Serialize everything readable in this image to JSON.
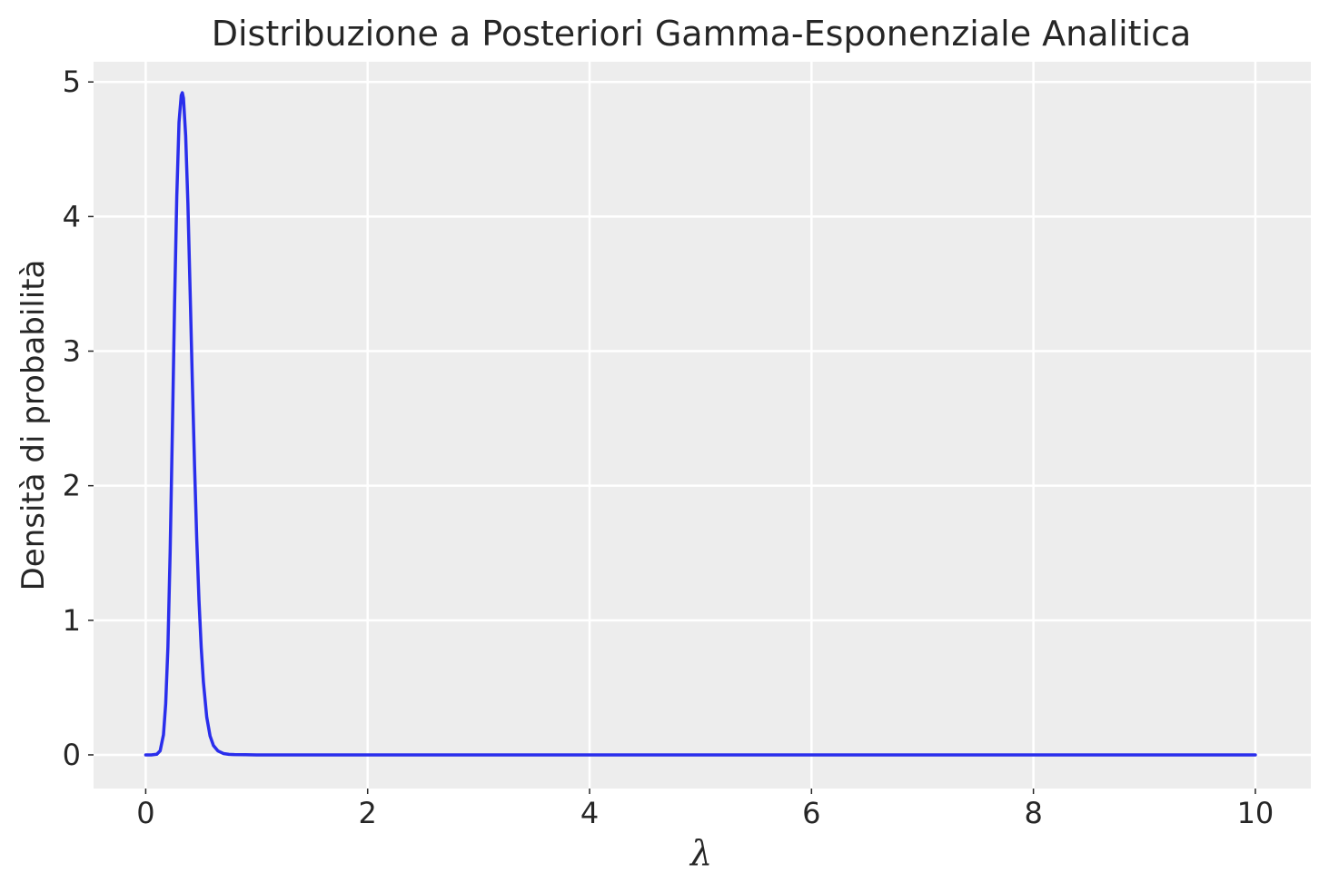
{
  "chart_data": {
    "type": "line",
    "title": "Distribuzione a Posteriori Gamma-Esponenziale Analitica",
    "xlabel": "λ",
    "ylabel": "Densità di probabilità",
    "xlim": [
      -0.47,
      10.5
    ],
    "ylim": [
      -0.25,
      5.15
    ],
    "xticks": [
      0,
      2,
      4,
      6,
      8,
      10
    ],
    "yticks": [
      0,
      1,
      2,
      3,
      4,
      5
    ],
    "grid": true,
    "background": "#ededed",
    "series": [
      {
        "color": "#2a2eec",
        "x": [
          0,
          0.05,
          0.1,
          0.13,
          0.16,
          0.18,
          0.2,
          0.22,
          0.24,
          0.26,
          0.28,
          0.3,
          0.32,
          0.33,
          0.34,
          0.36,
          0.38,
          0.4,
          0.42,
          0.44,
          0.46,
          0.48,
          0.5,
          0.52,
          0.55,
          0.58,
          0.61,
          0.65,
          0.7,
          0.75,
          0.8,
          0.9,
          1.0,
          1.5,
          2,
          4,
          6,
          8,
          10
        ],
        "y": [
          0,
          0,
          0.005,
          0.03,
          0.15,
          0.38,
          0.8,
          1.5,
          2.4,
          3.35,
          4.15,
          4.7,
          4.9,
          4.92,
          4.88,
          4.6,
          4.1,
          3.45,
          2.78,
          2.15,
          1.6,
          1.15,
          0.8,
          0.54,
          0.28,
          0.14,
          0.07,
          0.03,
          0.01,
          0.004,
          0.002,
          0.001,
          0,
          0,
          0,
          0,
          0,
          0,
          0
        ]
      }
    ]
  }
}
